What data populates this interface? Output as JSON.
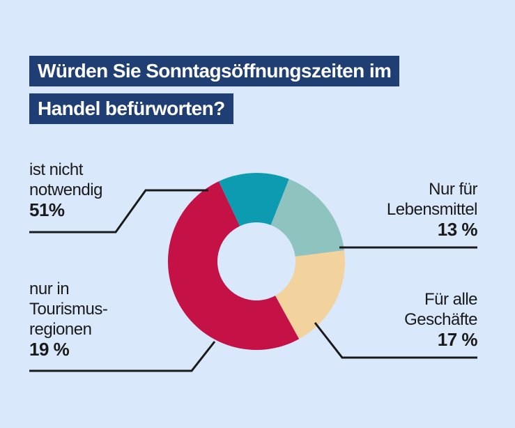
{
  "title": {
    "line1": "Würden Sie Sonntagsöffnungszeiten im",
    "line2": "Handel befürworten?"
  },
  "colors": {
    "background": "#d9e8fa",
    "title_bg": "#1f3f74",
    "title_text": "#ffffff"
  },
  "chart_data": {
    "type": "pie",
    "variant": "donut",
    "title": "Würden Sie Sonntagsöffnungszeiten im Handel befürworten?",
    "slices": [
      {
        "label_lines": [
          "ist nicht",
          "notwendig"
        ],
        "value": 51,
        "value_text": "51%",
        "color": "#c41146"
      },
      {
        "label_lines": [
          "Nur für",
          "Lebensmittel"
        ],
        "value": 13,
        "value_text": "13 %",
        "color": "#0c9bb1"
      },
      {
        "label_lines": [
          "Für alle",
          "Geschäfte"
        ],
        "value": 17,
        "value_text": "17 %",
        "color": "#8ec3c0"
      },
      {
        "label_lines": [
          "nur in",
          "Tourismus-",
          "regionen"
        ],
        "value": 19,
        "value_text": "19 %",
        "color": "#f2d29d"
      }
    ]
  }
}
